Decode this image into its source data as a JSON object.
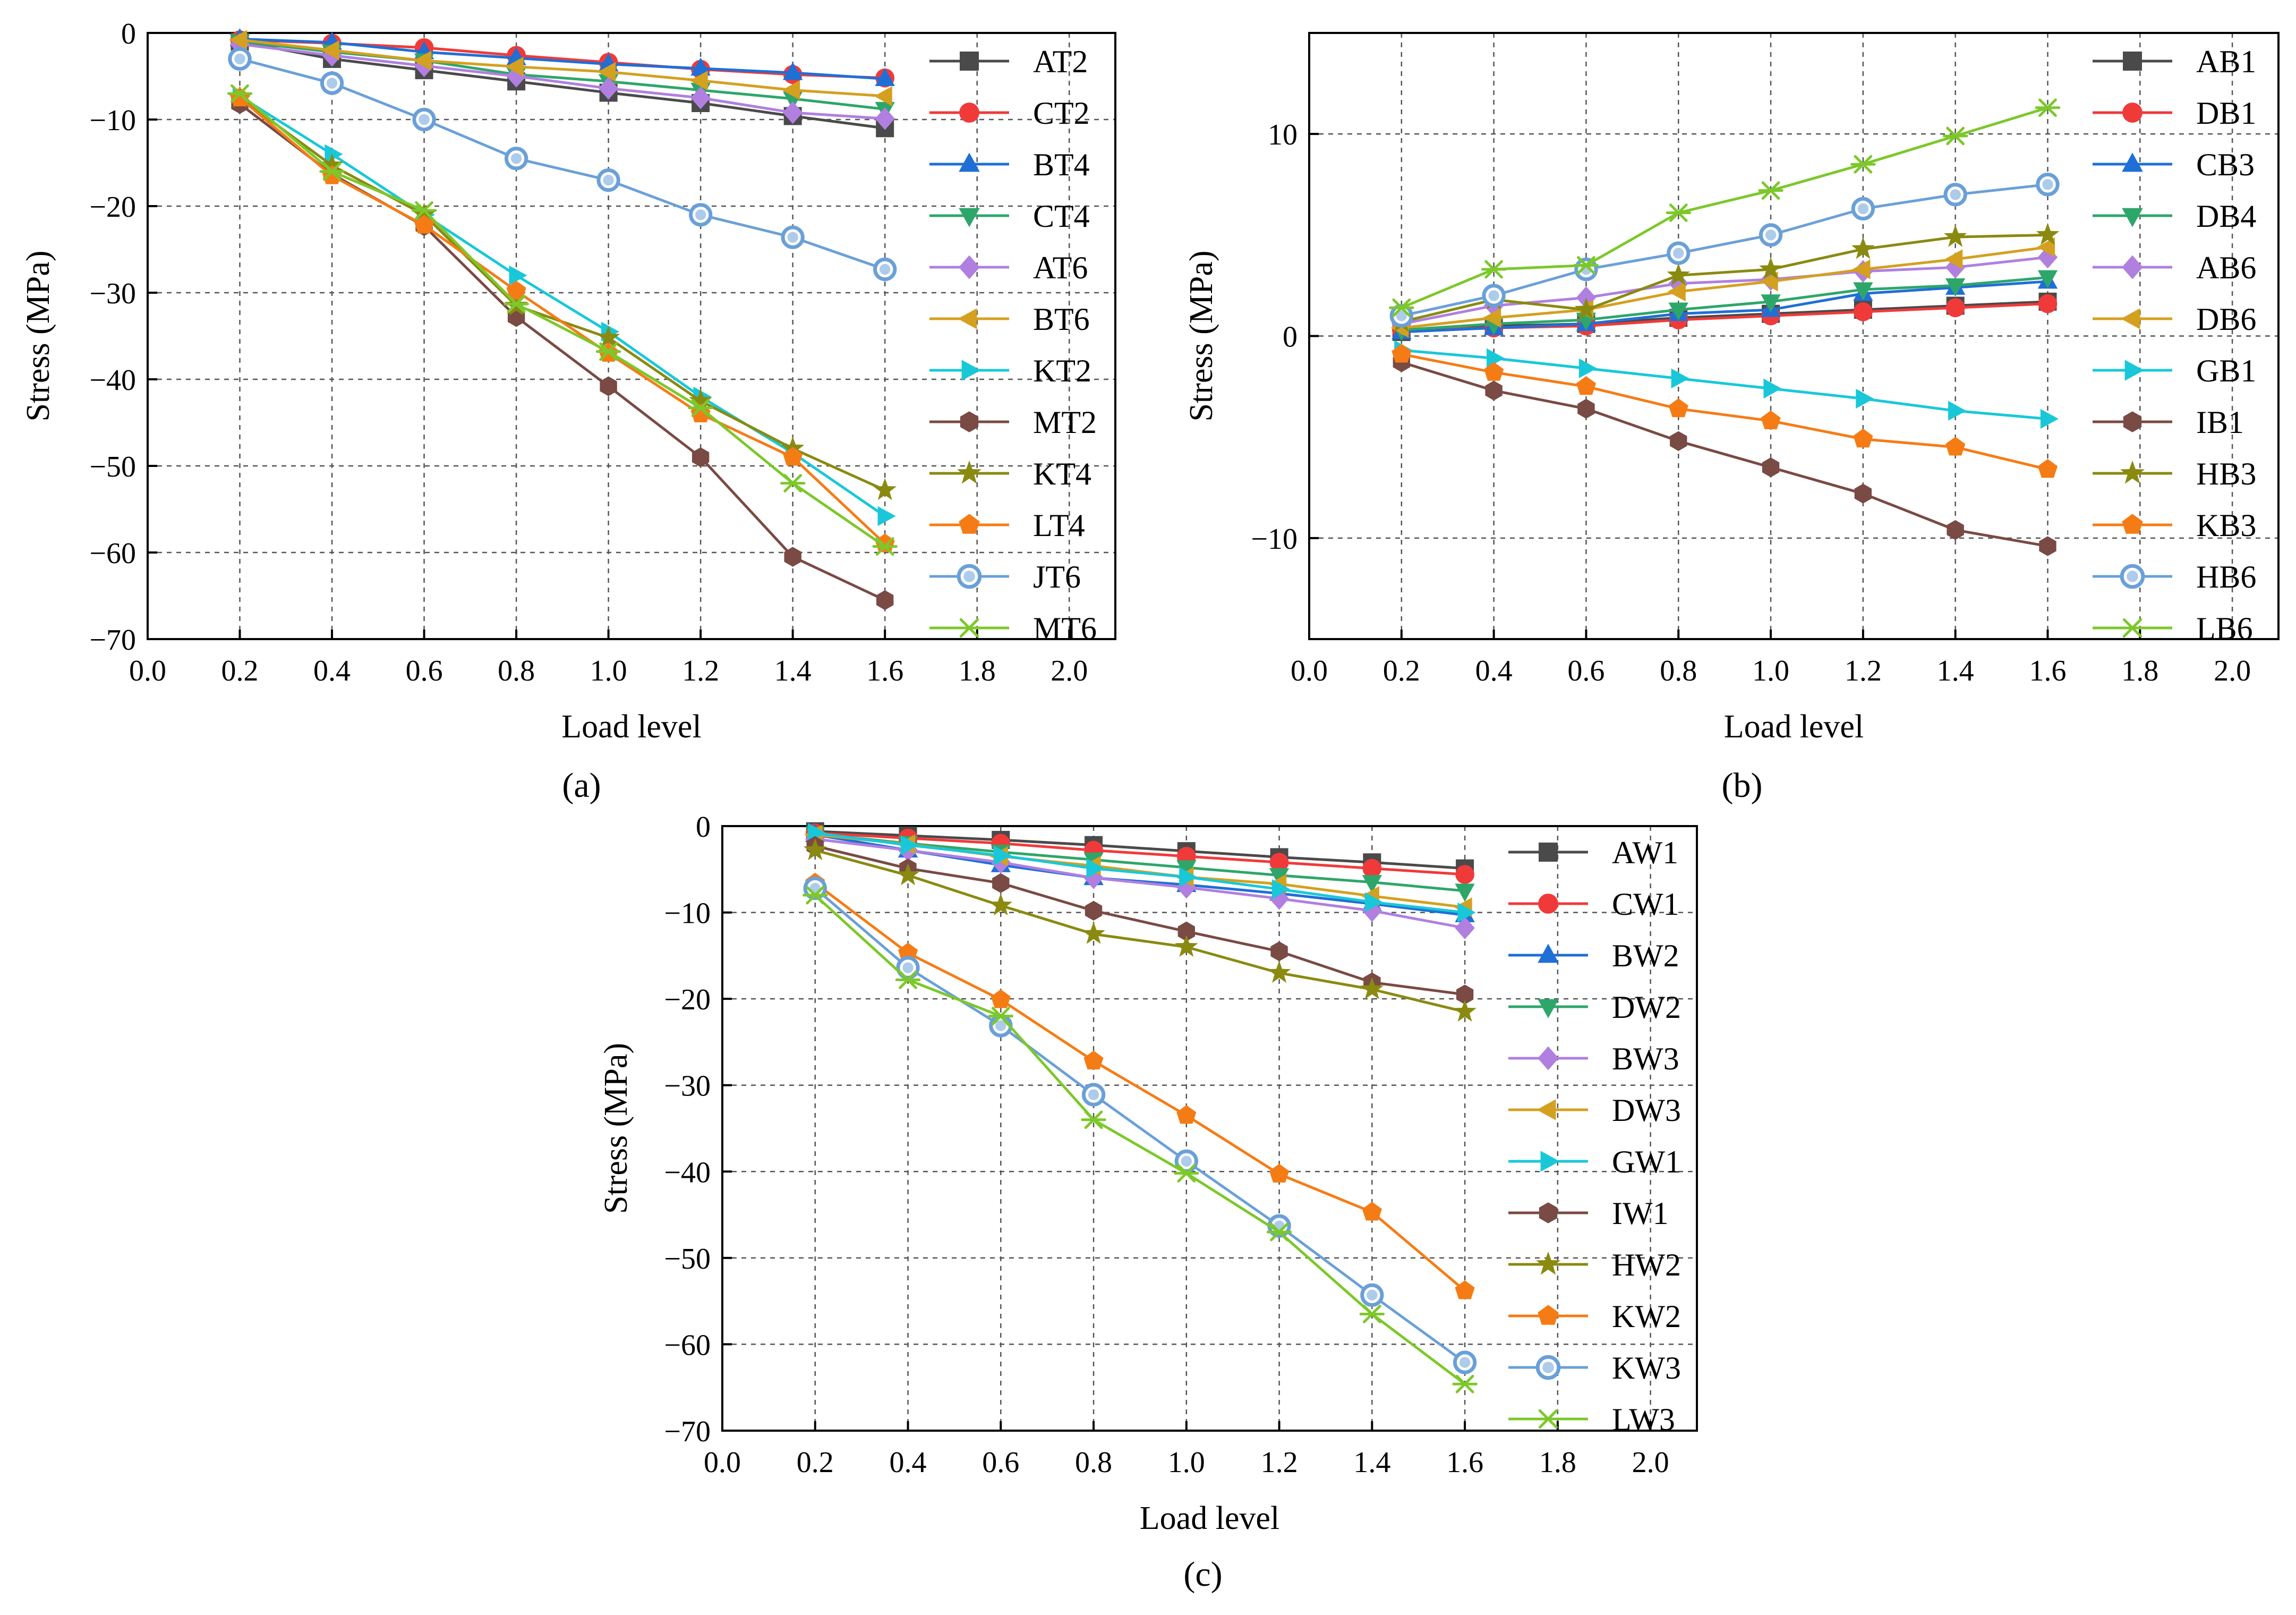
{
  "chart_data": [
    {
      "type": "line",
      "panel_label": "(a)",
      "xlabel": "Load level",
      "ylabel": "Stress (MPa)",
      "xlim": [
        0.0,
        2.1
      ],
      "ylim": [
        -70,
        0
      ],
      "xticks": [
        0.0,
        0.2,
        0.4,
        0.6,
        0.8,
        1.0,
        1.2,
        1.4,
        1.6,
        1.8,
        2.0
      ],
      "yticks": [
        0,
        -10,
        -20,
        -30,
        -40,
        -50,
        -60,
        -70
      ],
      "grid": true,
      "legend_position": "right",
      "x": [
        0.2,
        0.4,
        0.6,
        0.8,
        1.0,
        1.2,
        1.4,
        1.6
      ],
      "series": [
        {
          "name": "AT2",
          "color": "#4a4a4a",
          "marker": "square",
          "values": [
            -1,
            -3,
            -4.3,
            -5.6,
            -6.9,
            -8.1,
            -9.6,
            -11
          ]
        },
        {
          "name": "CT2",
          "color": "#f03a3a",
          "marker": "circle",
          "values": [
            -0.8,
            -1.2,
            -1.7,
            -2.6,
            -3.4,
            -4.2,
            -4.8,
            -5.2
          ]
        },
        {
          "name": "BT4",
          "color": "#1f6fd6",
          "marker": "triangle-up",
          "values": [
            -0.7,
            -1.1,
            -2.2,
            -2.9,
            -3.6,
            -4.1,
            -4.6,
            -5.3
          ]
        },
        {
          "name": "CT4",
          "color": "#2ea66a",
          "marker": "triangle-down",
          "values": [
            -1,
            -2.2,
            -3.2,
            -4.8,
            -5.6,
            -6.6,
            -7.6,
            -8.8
          ]
        },
        {
          "name": "AT6",
          "color": "#b07fe0",
          "marker": "diamond",
          "values": [
            -1.3,
            -2.6,
            -3.8,
            -5,
            -6.4,
            -7.5,
            -9.2,
            -9.9
          ]
        },
        {
          "name": "BT6",
          "color": "#d4a020",
          "marker": "triangle-left",
          "values": [
            -0.8,
            -2,
            -3.2,
            -3.9,
            -4.5,
            -5.5,
            -6.6,
            -7.3
          ]
        },
        {
          "name": "KT2",
          "color": "#18c8d8",
          "marker": "triangle-right",
          "values": [
            -7.3,
            -14,
            -21,
            -28,
            -34.5,
            -42,
            -48.5,
            -55.8
          ]
        },
        {
          "name": "MT2",
          "color": "#7a4a44",
          "marker": "hexagon",
          "values": [
            -8.2,
            -16.3,
            -22.3,
            -32.8,
            -40.8,
            -49,
            -60.5,
            -65.5
          ]
        },
        {
          "name": "KT4",
          "color": "#8a8a10",
          "marker": "star",
          "values": [
            -7.5,
            -15.3,
            -21,
            -31.5,
            -35.2,
            -42.5,
            -48,
            -52.8
          ]
        },
        {
          "name": "LT4",
          "color": "#f57c15",
          "marker": "pentagon",
          "values": [
            -7.5,
            -16.5,
            -22.2,
            -29.8,
            -37,
            -44,
            -49,
            -59
          ]
        },
        {
          "name": "JT6",
          "color": "#6aa0d8",
          "marker": "circle-ring",
          "values": [
            -3,
            -5.8,
            -10,
            -14.5,
            -17,
            -21,
            -23.6,
            -27.3
          ]
        },
        {
          "name": "MT6",
          "color": "#7cc82a",
          "marker": "asterisk",
          "values": [
            -7,
            -16,
            -20.5,
            -31.3,
            -36.8,
            -43.3,
            -52,
            -59.3
          ]
        }
      ]
    },
    {
      "type": "line",
      "panel_label": "(b)",
      "xlabel": "Load level",
      "ylabel": "Stress (MPa)",
      "xlim": [
        0.0,
        2.1
      ],
      "ylim": [
        -15,
        15
      ],
      "xticks": [
        0.0,
        0.2,
        0.4,
        0.6,
        0.8,
        1.0,
        1.2,
        1.4,
        1.6,
        1.8,
        2.0
      ],
      "yticks": [
        10,
        0,
        -10
      ],
      "grid": true,
      "legend_position": "top-right",
      "x": [
        0.2,
        0.4,
        0.6,
        0.8,
        1.0,
        1.2,
        1.4,
        1.6
      ],
      "series": [
        {
          "name": "AB1",
          "color": "#4a4a4a",
          "marker": "square",
          "values": [
            0.2,
            0.5,
            0.6,
            0.9,
            1.1,
            1.3,
            1.5,
            1.7
          ]
        },
        {
          "name": "DB1",
          "color": "#f03a3a",
          "marker": "circle",
          "values": [
            0.3,
            0.4,
            0.5,
            0.8,
            1,
            1.2,
            1.4,
            1.6
          ]
        },
        {
          "name": "CB3",
          "color": "#1f6fd6",
          "marker": "triangle-up",
          "values": [
            0.2,
            0.4,
            0.6,
            1.1,
            1.3,
            2.1,
            2.4,
            2.7
          ]
        },
        {
          "name": "DB4",
          "color": "#2ea66a",
          "marker": "triangle-down",
          "values": [
            0.3,
            0.6,
            0.8,
            1.3,
            1.7,
            2.3,
            2.5,
            2.9
          ]
        },
        {
          "name": "AB6",
          "color": "#b07fe0",
          "marker": "diamond",
          "values": [
            0.6,
            1.5,
            1.9,
            2.6,
            2.8,
            3.2,
            3.4,
            3.9
          ]
        },
        {
          "name": "DB6",
          "color": "#d4a020",
          "marker": "triangle-left",
          "values": [
            0.4,
            0.9,
            1.3,
            2.2,
            2.7,
            3.3,
            3.8,
            4.4
          ]
        },
        {
          "name": "GB1",
          "color": "#18c8d8",
          "marker": "triangle-right",
          "values": [
            -0.7,
            -1.1,
            -1.6,
            -2.1,
            -2.6,
            -3.1,
            -3.7,
            -4.1
          ]
        },
        {
          "name": "IB1",
          "color": "#7a4a44",
          "marker": "hexagon",
          "values": [
            -1.3,
            -2.7,
            -3.6,
            -5.2,
            -6.5,
            -7.8,
            -9.6,
            -10.4
          ]
        },
        {
          "name": "HB3",
          "color": "#8a8a10",
          "marker": "star",
          "values": [
            0.7,
            1.8,
            1.3,
            3,
            3.3,
            4.3,
            4.9,
            5
          ]
        },
        {
          "name": "KB3",
          "color": "#f57c15",
          "marker": "pentagon",
          "values": [
            -0.9,
            -1.8,
            -2.5,
            -3.6,
            -4.2,
            -5.1,
            -5.5,
            -6.6
          ]
        },
        {
          "name": "HB6",
          "color": "#6aa0d8",
          "marker": "circle-ring",
          "values": [
            1,
            2,
            3.3,
            4.1,
            5,
            6.3,
            7,
            7.5
          ]
        },
        {
          "name": "LB6",
          "color": "#7cc82a",
          "marker": "asterisk",
          "values": [
            1.4,
            3.3,
            3.5,
            6.1,
            7.2,
            8.5,
            9.9,
            11.3
          ]
        }
      ]
    },
    {
      "type": "line",
      "panel_label": "(c)",
      "xlabel": "Load level",
      "ylabel": "Stress (MPa)",
      "xlim": [
        0.0,
        2.1
      ],
      "ylim": [
        -70,
        0
      ],
      "xticks": [
        0.0,
        0.2,
        0.4,
        0.6,
        0.8,
        1.0,
        1.2,
        1.4,
        1.6,
        1.8,
        2.0
      ],
      "yticks": [
        0,
        -10,
        -20,
        -30,
        -40,
        -50,
        -60,
        -70
      ],
      "grid": true,
      "legend_position": "right",
      "x": [
        0.2,
        0.4,
        0.6,
        0.8,
        1.0,
        1.2,
        1.4,
        1.6
      ],
      "series": [
        {
          "name": "AW1",
          "color": "#4a4a4a",
          "marker": "square",
          "values": [
            -0.6,
            -1.1,
            -1.6,
            -2.2,
            -2.9,
            -3.6,
            -4.2,
            -4.9
          ]
        },
        {
          "name": "CW1",
          "color": "#f03a3a",
          "marker": "circle",
          "values": [
            -0.8,
            -1.4,
            -2,
            -2.8,
            -3.5,
            -4.2,
            -4.9,
            -5.6
          ]
        },
        {
          "name": "BW2",
          "color": "#1f6fd6",
          "marker": "triangle-up",
          "values": [
            -1,
            -2.8,
            -4.5,
            -6,
            -6.8,
            -7.8,
            -9,
            -10.3
          ]
        },
        {
          "name": "DW2",
          "color": "#2ea66a",
          "marker": "triangle-down",
          "values": [
            -0.9,
            -2,
            -3,
            -3.9,
            -4.8,
            -5.7,
            -6.5,
            -7.5
          ]
        },
        {
          "name": "BW3",
          "color": "#b07fe0",
          "marker": "diamond",
          "values": [
            -1.5,
            -2.8,
            -4.2,
            -6,
            -7.1,
            -8.4,
            -9.8,
            -11.8
          ]
        },
        {
          "name": "DW3",
          "color": "#d4a020",
          "marker": "triangle-left",
          "values": [
            -1,
            -2.1,
            -3.5,
            -4.6,
            -5.9,
            -6.7,
            -8.1,
            -9.4
          ]
        },
        {
          "name": "GW1",
          "color": "#18c8d8",
          "marker": "triangle-right",
          "values": [
            -0.8,
            -2.2,
            -3.4,
            -4.9,
            -5.9,
            -7.3,
            -8.8,
            -10
          ]
        },
        {
          "name": "IW1",
          "color": "#7a4a44",
          "marker": "hexagon",
          "values": [
            -2.3,
            -4.9,
            -6.6,
            -9.8,
            -12.2,
            -14.5,
            -18.1,
            -19.5
          ]
        },
        {
          "name": "HW2",
          "color": "#8a8a10",
          "marker": "star",
          "values": [
            -2.8,
            -5.7,
            -9.2,
            -12.5,
            -14,
            -17,
            -18.9,
            -21.5
          ]
        },
        {
          "name": "KW2",
          "color": "#f57c15",
          "marker": "pentagon",
          "values": [
            -6.6,
            -14.7,
            -20.1,
            -27.2,
            -33.5,
            -40.3,
            -44.7,
            -53.8
          ]
        },
        {
          "name": "KW3",
          "color": "#6aa0d8",
          "marker": "circle-ring",
          "values": [
            -7.2,
            -16.4,
            -23.1,
            -31.1,
            -38.8,
            -46.3,
            -54.3,
            -62.1
          ]
        },
        {
          "name": "LW3",
          "color": "#7cc82a",
          "marker": "asterisk",
          "values": [
            -8,
            -17.8,
            -22,
            -34,
            -40.2,
            -47,
            -56.5,
            -64.6
          ]
        }
      ]
    }
  ]
}
